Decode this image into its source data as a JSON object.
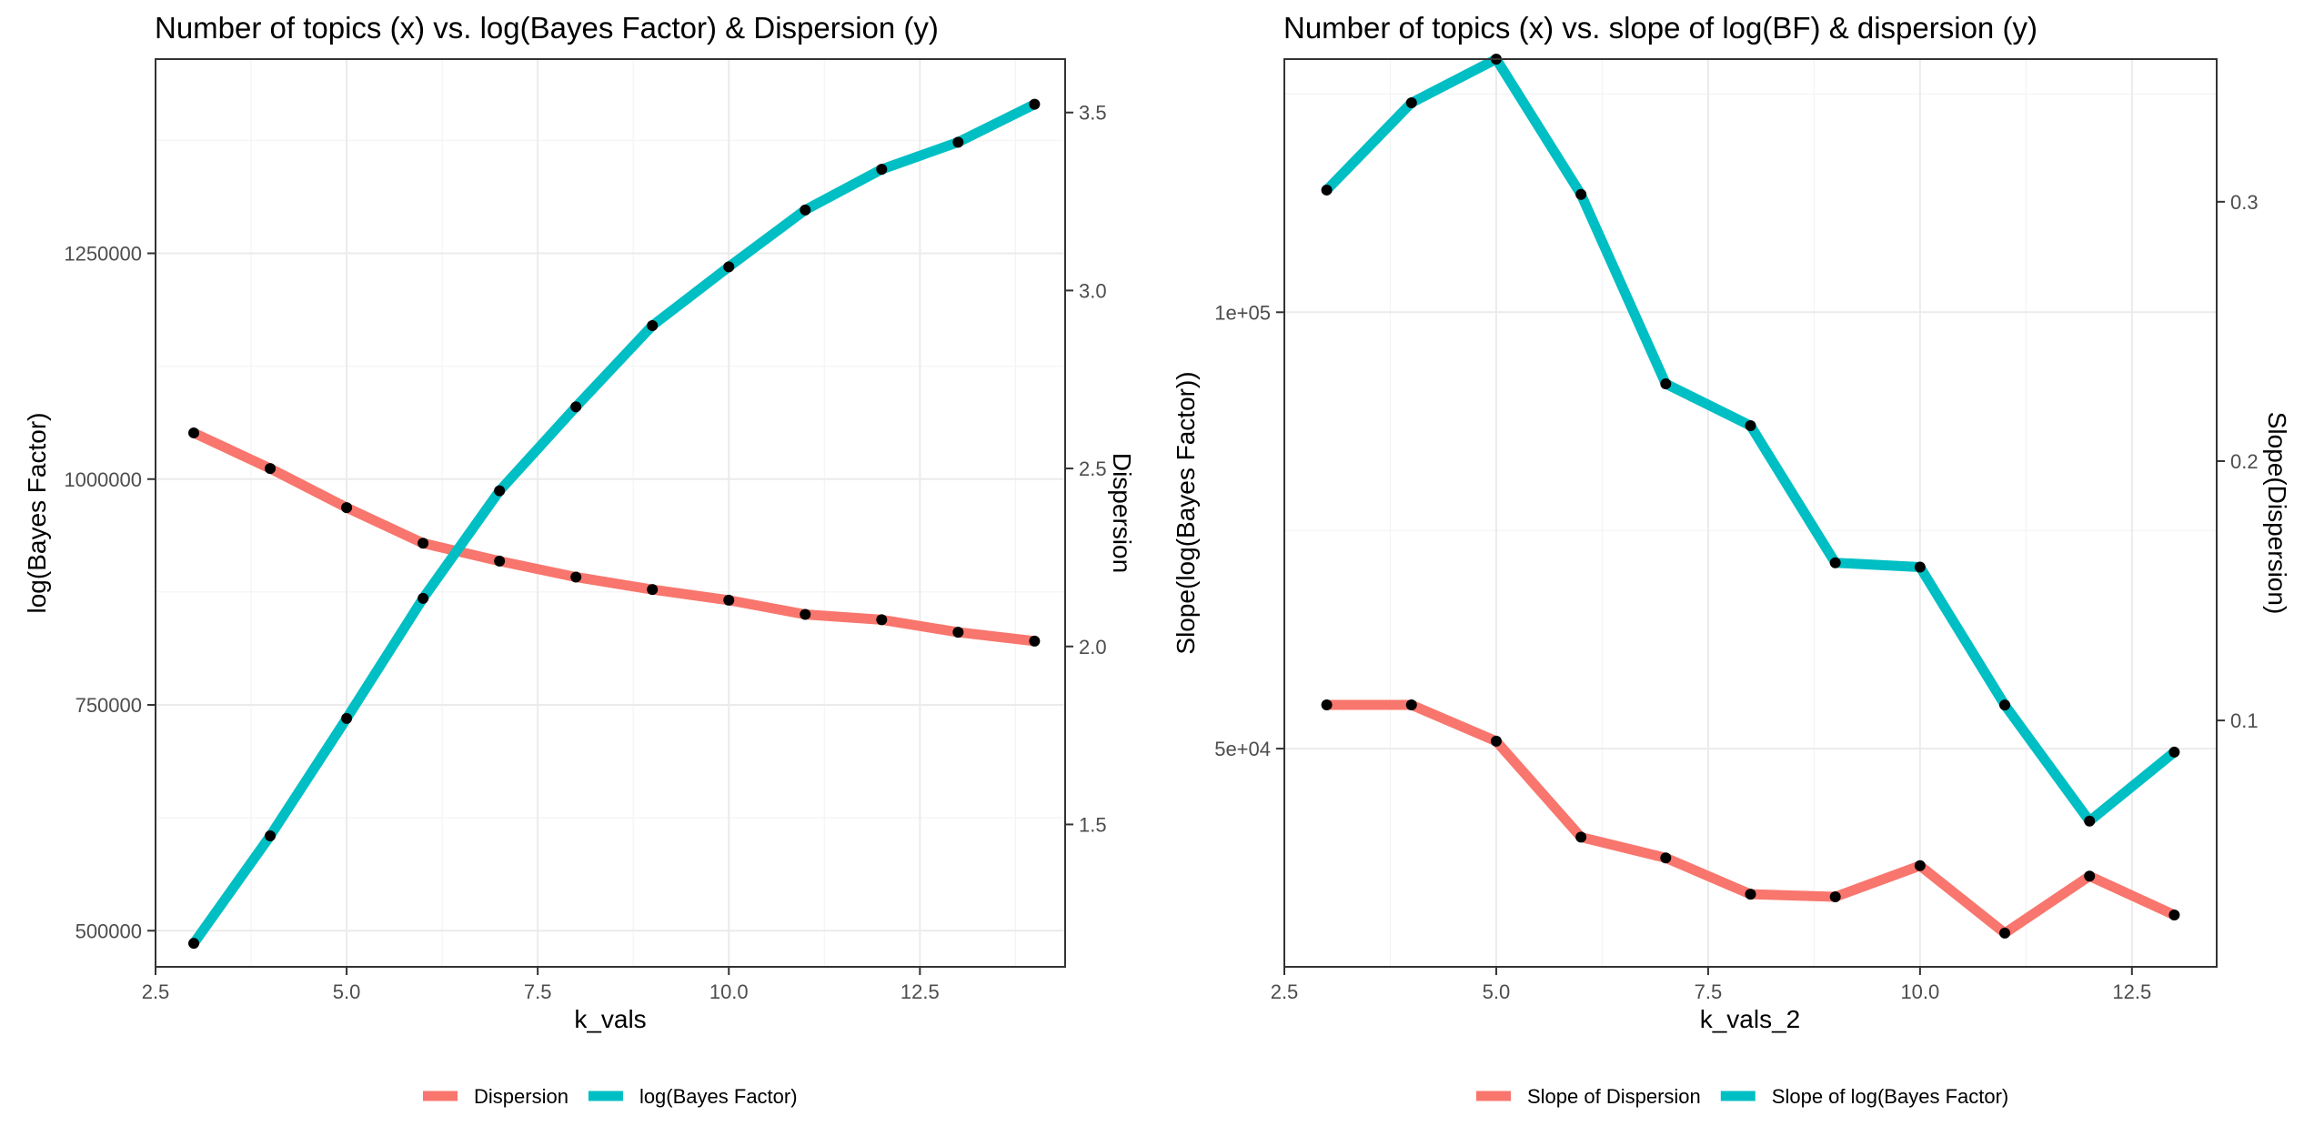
{
  "chart_data": [
    {
      "type": "line",
      "title": "Number of topics (x) vs. log(Bayes Factor) & Dispersion (y)",
      "xlabel": "k_vals",
      "ylabel": "log(Bayes Factor)",
      "y2label": "Dispersion",
      "xlim": [
        2.5,
        14.4
      ],
      "ylim": [
        460000,
        1465000
      ],
      "y2lim": [
        1.1,
        3.65
      ],
      "x_ticks": [
        2.5,
        5.0,
        7.5,
        10.0,
        12.5
      ],
      "x_tick_labels": [
        "2.5",
        "5.0",
        "7.5",
        "10.0",
        "12.5"
      ],
      "y_ticks": [
        500000,
        750000,
        1000000,
        1250000
      ],
      "y_tick_labels": [
        "500000",
        "750000",
        "1000000",
        "1250000"
      ],
      "y2_ticks": [
        1.5,
        2.0,
        2.5,
        3.0,
        3.5
      ],
      "y2_tick_labels": [
        "1.5",
        "2.0",
        "2.5",
        "3.0",
        "3.5"
      ],
      "grid": true,
      "legend_position": "bottom",
      "x": [
        3,
        4,
        5,
        6,
        7,
        8,
        9,
        10,
        11,
        12,
        13,
        14
      ],
      "series": [
        {
          "name": "Dispersion",
          "axis": "right",
          "color": "#F8766D",
          "values": [
            2.6,
            2.5,
            2.39,
            2.29,
            2.24,
            2.195,
            2.16,
            2.13,
            2.09,
            2.075,
            2.04,
            2.015
          ]
        },
        {
          "name": "log(Bayes Factor)",
          "axis": "left",
          "color": "#00BFC4",
          "values": [
            486000,
            605000,
            735000,
            868000,
            987000,
            1080000,
            1170000,
            1235000,
            1298000,
            1343000,
            1373000,
            1415000
          ]
        }
      ]
    },
    {
      "type": "line",
      "title": "Number of topics (x) vs. slope of log(BF) & dispersion (y)",
      "xlabel": "k_vals_2",
      "ylabel": "Slope(log(Bayes Factor))",
      "y2label": "Slope(Dispersion)",
      "xlim": [
        2.5,
        13.5
      ],
      "ylim": [
        25000,
        129000
      ],
      "y2lim": [
        0.005,
        0.355
      ],
      "x_ticks": [
        2.5,
        5.0,
        7.5,
        10.0,
        12.5
      ],
      "x_tick_labels": [
        "2.5",
        "5.0",
        "7.5",
        "10.0",
        "12.5"
      ],
      "y_ticks": [
        50000,
        100000
      ],
      "y_tick_labels": [
        "5e+04",
        "1e+05"
      ],
      "y2_ticks": [
        0.1,
        0.2,
        0.3
      ],
      "y2_tick_labels": [
        "0.1",
        "0.2",
        "0.3"
      ],
      "grid": true,
      "legend_position": "bottom",
      "x": [
        3,
        4,
        5,
        6,
        7,
        8,
        9,
        10,
        11,
        12,
        13
      ],
      "series": [
        {
          "name": "Slope of Dispersion",
          "axis": "right",
          "color": "#F8766D",
          "values": [
            0.106,
            0.106,
            0.092,
            0.055,
            0.047,
            0.033,
            0.032,
            0.044,
            0.018,
            0.04,
            0.025
          ]
        },
        {
          "name": "Slope of log(Bayes Factor)",
          "axis": "left",
          "color": "#00BFC4",
          "values": [
            114000,
            124000,
            129000,
            113500,
            91800,
            87000,
            71300,
            70800,
            55000,
            41700,
            49600
          ]
        }
      ]
    }
  ]
}
